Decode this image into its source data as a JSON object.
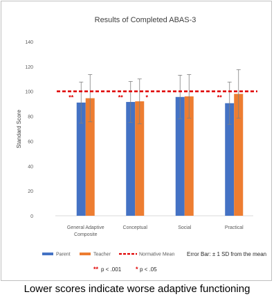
{
  "chart_data": {
    "type": "bar",
    "title": "Results of Completed ABAS-3",
    "ylabel": "Standard Score",
    "xlabel": "",
    "ylim": [
      0,
      140
    ],
    "yticks": [
      0,
      20,
      40,
      60,
      80,
      100,
      120,
      140
    ],
    "grid": false,
    "categories": [
      "General Adaptive Composite",
      "Conceptual",
      "Social",
      "Practical"
    ],
    "category_lines": [
      [
        "General Adaptive",
        "Composite"
      ],
      [
        "Conceptual"
      ],
      [
        "Social"
      ],
      [
        "Practical"
      ]
    ],
    "series": [
      {
        "name": "Parent",
        "color": "#4472c4",
        "values": [
          91,
          91.5,
          95.5,
          90.5
        ],
        "error": [
          16.5,
          16.5,
          17.5,
          17
        ]
      },
      {
        "name": "Teacher",
        "color": "#ed7d31",
        "values": [
          94.5,
          92,
          96,
          98
        ],
        "error": [
          19,
          18,
          17.5,
          19.5
        ]
      }
    ],
    "reference_line": {
      "name": "Normative Mean",
      "value": 100,
      "color": "#e00000"
    },
    "error_bar_note": "Error Bar: ± 1 SD from the mean",
    "significance": [
      {
        "category": "General Adaptive Composite",
        "series": "Parent",
        "marker": "**"
      },
      {
        "category": "Conceptual",
        "series": "Parent",
        "marker": "**"
      },
      {
        "category": "Conceptual",
        "series": "Teacher",
        "marker": "*"
      },
      {
        "category": "Practical",
        "series": "Parent",
        "marker": "**"
      }
    ],
    "significance_legend": [
      {
        "marker": "**",
        "text": "p < .001"
      },
      {
        "marker": "*",
        "text": "p < .05"
      }
    ],
    "legend_position": "bottom"
  },
  "caption": "Lower scores indicate worse adaptive functioning"
}
